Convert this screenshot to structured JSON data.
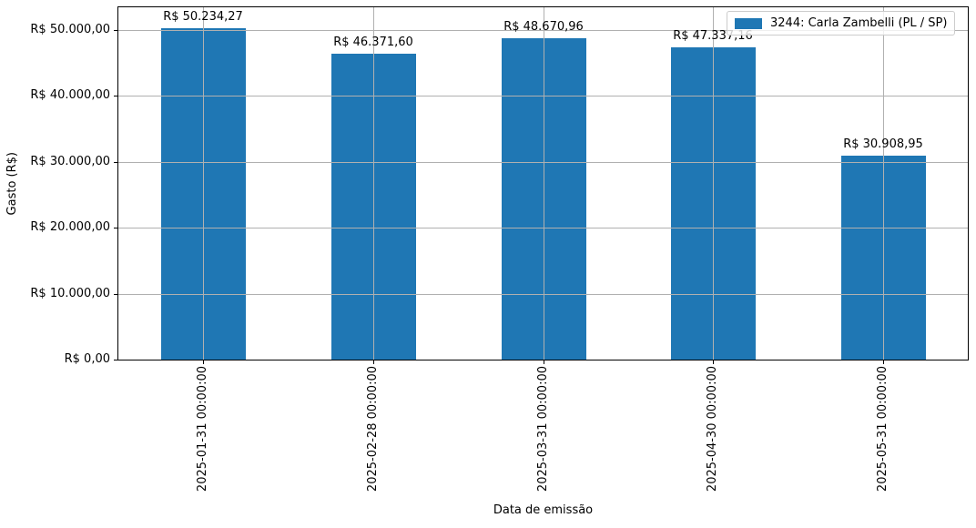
{
  "chart_data": {
    "type": "bar",
    "title": "",
    "xlabel": "Data de emissão",
    "ylabel": "Gasto (R$)",
    "categories": [
      "2025-01-31 00:00:00",
      "2025-02-28 00:00:00",
      "2025-03-31 00:00:00",
      "2025-04-30 00:00:00",
      "2025-05-31 00:00:00"
    ],
    "values": [
      50234.27,
      46371.6,
      48670.96,
      47337.16,
      30908.95
    ],
    "bar_value_labels": [
      "R$ 50.234,27",
      "R$ 46.371,60",
      "R$ 48.670,96",
      "R$ 47.337,16",
      "R$ 30.908,95"
    ],
    "y_ticks": [
      {
        "value": 0,
        "label": "R$ 0,00"
      },
      {
        "value": 10000,
        "label": "R$ 10.000,00"
      },
      {
        "value": 20000,
        "label": "R$ 20.000,00"
      },
      {
        "value": 30000,
        "label": "R$ 30.000,00"
      },
      {
        "value": 40000,
        "label": "R$ 40.000,00"
      },
      {
        "value": 50000,
        "label": "R$ 50.000,00"
      }
    ],
    "ylim": [
      0,
      53400
    ],
    "grid": true,
    "bar_width_fraction": 0.5,
    "legend": {
      "position": "upper-right",
      "entries": [
        {
          "label": "3244: Carla Zambelli (PL / SP)",
          "color": "#1f77b4"
        }
      ]
    },
    "colors": {
      "bar": "#1f77b4",
      "grid": "#b0b0b0",
      "axis": "#000000",
      "legend_border": "#cccccc",
      "background": "#ffffff"
    }
  }
}
